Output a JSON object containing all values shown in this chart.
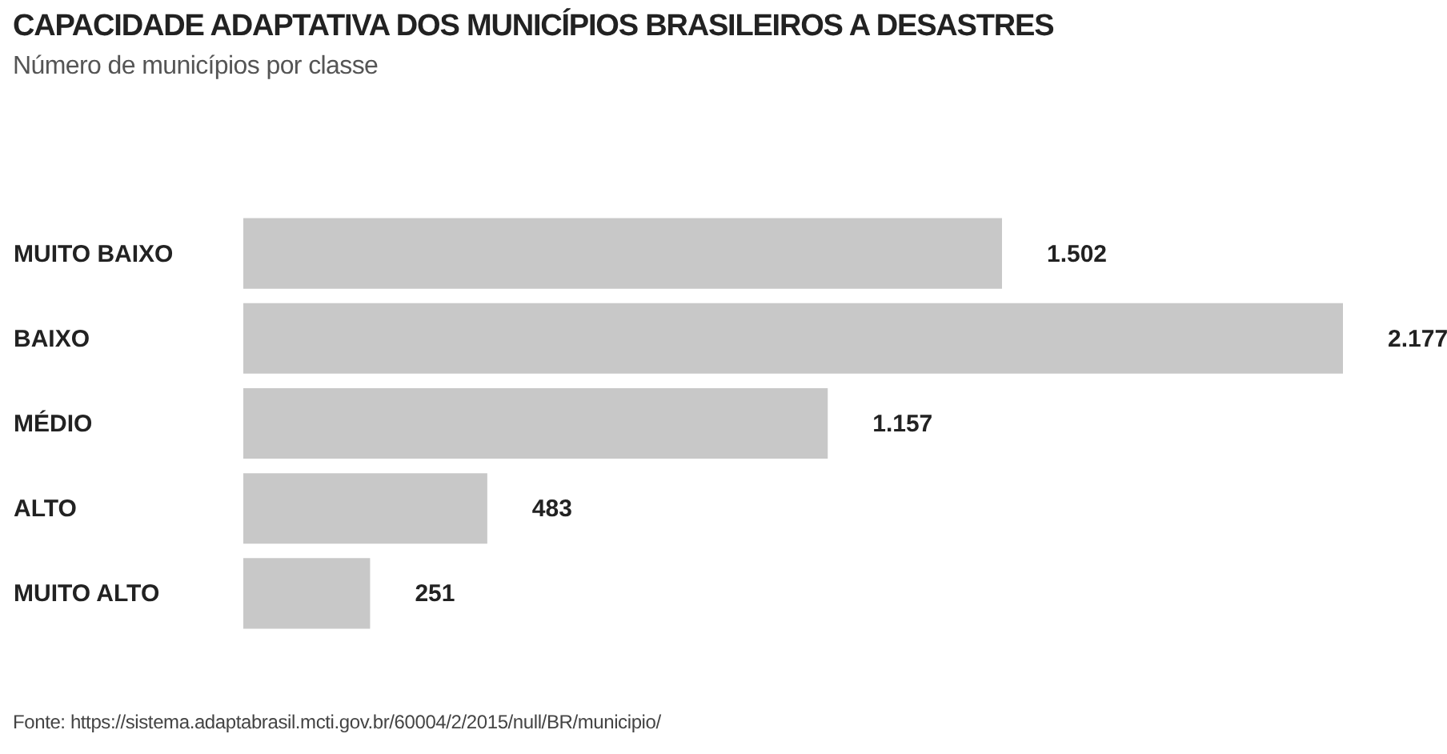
{
  "chart_data": {
    "type": "bar",
    "orientation": "horizontal",
    "title": "CAPACIDADE ADAPTATIVA DOS MUNICÍPIOS BRASILEIROS A DESASTRES",
    "subtitle": "Número de municípios por classe",
    "categories": [
      "MUITO BAIXO",
      "BAIXO",
      "MÉDIO",
      "ALTO",
      "MUITO ALTO"
    ],
    "values": [
      1502,
      2177,
      1157,
      483,
      251
    ],
    "value_labels": [
      "1.502",
      "2.177",
      "1.157",
      "483",
      "251"
    ],
    "color": "#c8c8c8",
    "annotations": [
      "Fonte: https://sistema.adaptabrasil.mcti.gov.br/60004/2/2015/null/BR/municipio/"
    ]
  }
}
